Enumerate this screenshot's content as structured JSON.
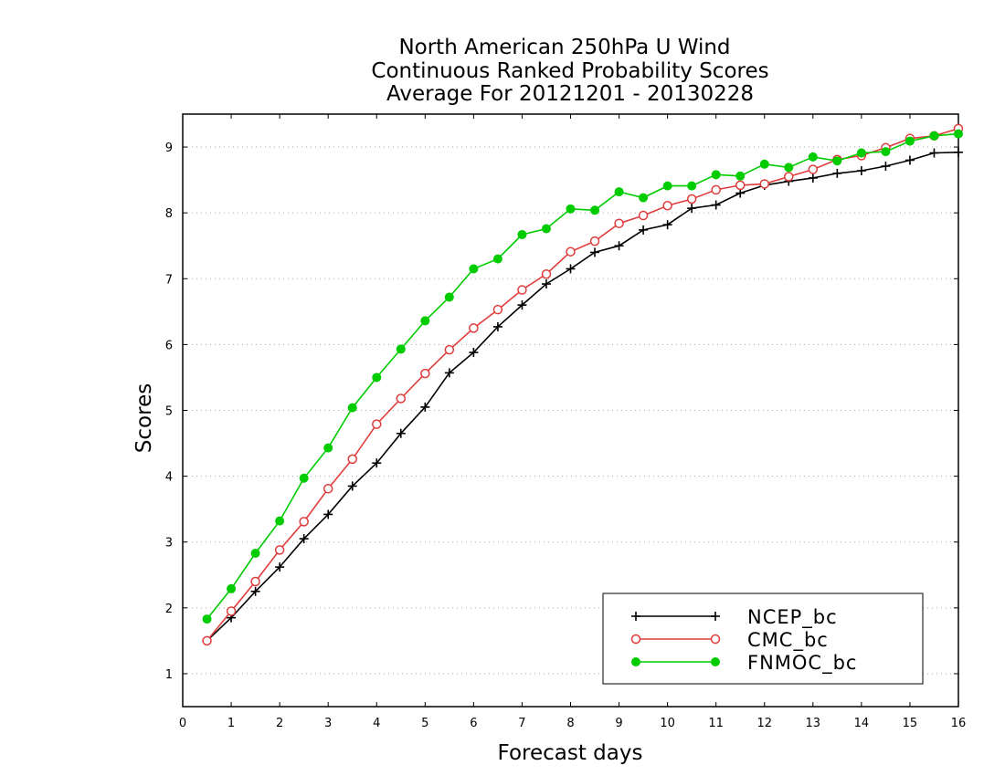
{
  "chart_data": {
    "type": "line",
    "title": [
      "North American 250hPa U Wind",
      "Continuous Ranked Probability Scores",
      "Average For 20121201 - 20130228"
    ],
    "xlabel": "Forecast days",
    "ylabel": "Scores",
    "xlim": [
      0,
      16
    ],
    "ylim": [
      0.5,
      9.5
    ],
    "xticks": [
      0,
      1,
      2,
      3,
      4,
      5,
      6,
      7,
      8,
      9,
      10,
      11,
      12,
      13,
      14,
      15,
      16
    ],
    "yticks": [
      1,
      2,
      3,
      4,
      5,
      6,
      7,
      8,
      9
    ],
    "grid": "horizontal-dotted",
    "legend_position": "bottom-right",
    "x": [
      0.5,
      1,
      1.5,
      2,
      2.5,
      3,
      3.5,
      4,
      4.5,
      5,
      5.5,
      6,
      6.5,
      7,
      7.5,
      8,
      8.5,
      9,
      9.5,
      10,
      10.5,
      11,
      11.5,
      12,
      12.5,
      13,
      13.5,
      14,
      14.5,
      15,
      15.5,
      16
    ],
    "series": [
      {
        "name": "NCEP_bc",
        "color": "#000000",
        "marker": "plus",
        "values": [
          1.5,
          1.85,
          2.25,
          2.62,
          3.05,
          3.42,
          3.85,
          4.2,
          4.65,
          5.05,
          5.57,
          5.88,
          6.27,
          6.6,
          6.92,
          7.15,
          7.4,
          7.5,
          7.74,
          7.82,
          8.07,
          8.12,
          8.3,
          8.42,
          8.48,
          8.53,
          8.6,
          8.64,
          8.71,
          8.8,
          8.91,
          8.92
        ]
      },
      {
        "name": "CMC_bc",
        "color": "#e03c3c",
        "marker": "open-circle",
        "values": [
          1.5,
          1.95,
          2.4,
          2.88,
          3.31,
          3.81,
          4.26,
          4.79,
          5.18,
          5.56,
          5.92,
          6.25,
          6.53,
          6.83,
          7.07,
          7.41,
          7.57,
          7.84,
          7.96,
          8.11,
          8.21,
          8.35,
          8.42,
          8.44,
          8.55,
          8.66,
          8.81,
          8.87,
          8.99,
          9.13,
          9.17,
          9.28
        ]
      },
      {
        "name": "FNMOC_bc",
        "color": "#00cc00",
        "marker": "filled-circle",
        "values": [
          1.83,
          2.29,
          2.83,
          3.32,
          3.97,
          4.43,
          5.04,
          5.5,
          5.93,
          6.36,
          6.72,
          7.15,
          7.3,
          7.67,
          7.76,
          8.06,
          8.04,
          8.32,
          8.23,
          8.41,
          8.41,
          8.58,
          8.56,
          8.74,
          8.69,
          8.85,
          8.79,
          8.91,
          8.93,
          9.09,
          9.17,
          9.2
        ]
      }
    ]
  }
}
